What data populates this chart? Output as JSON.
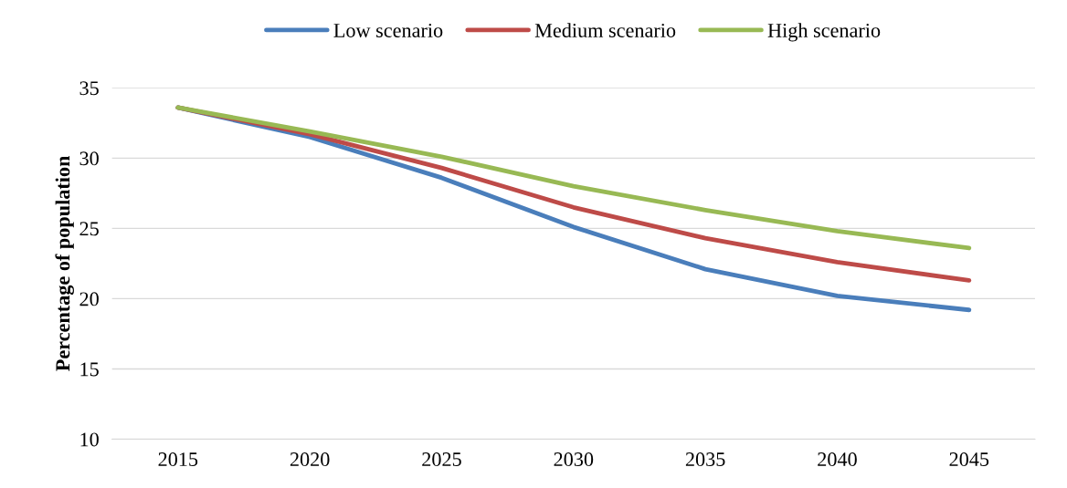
{
  "chart_data": {
    "type": "line",
    "ylabel": "Percentage of population",
    "categories": [
      "2015",
      "2020",
      "2025",
      "2030",
      "2035",
      "2040",
      "2045"
    ],
    "series": [
      {
        "name": "Low scenario",
        "color": "#4a7ebb",
        "values": [
          33.6,
          31.5,
          28.6,
          25.1,
          22.1,
          20.2,
          19.2
        ]
      },
      {
        "name": "Medium scenario",
        "color": "#be4b48",
        "values": [
          33.6,
          31.7,
          29.3,
          26.5,
          24.3,
          22.6,
          21.3
        ]
      },
      {
        "name": "High scenario",
        "color": "#98b954",
        "values": [
          33.6,
          31.9,
          30.1,
          28.0,
          26.3,
          24.8,
          23.6
        ]
      }
    ],
    "ylim": [
      10,
      35
    ],
    "yticks": [
      10,
      15,
      20,
      25,
      30,
      35
    ],
    "grid": "y",
    "legend": "top",
    "marker": "none",
    "line_style": "solid"
  }
}
